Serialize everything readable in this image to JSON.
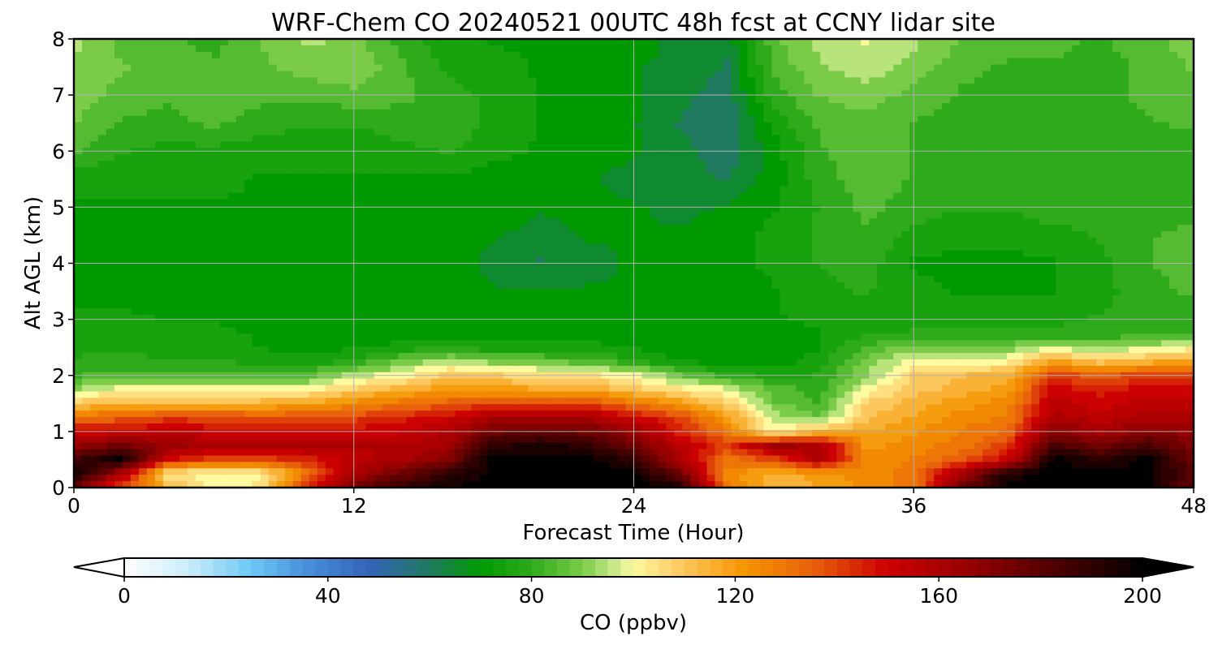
{
  "chart_data": {
    "type": "heatmap",
    "title": "WRF-Chem CO  20240521 00UTC 48h fcst at CCNY lidar site",
    "xlabel": "Forecast Time (Hour)",
    "ylabel": "Alt AGL (km)",
    "xlim": [
      0,
      48
    ],
    "ylim": [
      0,
      8
    ],
    "xticks": [
      "0",
      "12",
      "24",
      "36",
      "48"
    ],
    "yticks": [
      "0",
      "1",
      "2",
      "3",
      "4",
      "5",
      "6",
      "7",
      "8"
    ],
    "grid": true,
    "colorbar": {
      "label": "CO  (ppbv)",
      "range": [
        0,
        200
      ],
      "ticks": [
        "0",
        "40",
        "80",
        "120",
        "160",
        "200"
      ],
      "extend": "both",
      "stops": [
        {
          "v": 0,
          "c": "#ffffff"
        },
        {
          "v": 12,
          "c": "#cdeefa"
        },
        {
          "v": 25,
          "c": "#6cc8f5"
        },
        {
          "v": 35,
          "c": "#4a92db"
        },
        {
          "v": 48,
          "c": "#3464b8"
        },
        {
          "v": 60,
          "c": "#1f7a60"
        },
        {
          "v": 70,
          "c": "#009a00"
        },
        {
          "v": 80,
          "c": "#2eaa1c"
        },
        {
          "v": 90,
          "c": "#7acc48"
        },
        {
          "v": 97,
          "c": "#d2ec90"
        },
        {
          "v": 100,
          "c": "#fffaa0"
        },
        {
          "v": 107,
          "c": "#fdd472"
        },
        {
          "v": 115,
          "c": "#f9b236"
        },
        {
          "v": 122,
          "c": "#f59500"
        },
        {
          "v": 135,
          "c": "#e8620c"
        },
        {
          "v": 150,
          "c": "#cc0000"
        },
        {
          "v": 165,
          "c": "#9a0000"
        },
        {
          "v": 180,
          "c": "#5a0000"
        },
        {
          "v": 195,
          "c": "#1a0000"
        },
        {
          "v": 200,
          "c": "#000000"
        }
      ]
    },
    "times_h": [
      0,
      2,
      4,
      6,
      8,
      10,
      12,
      14,
      16,
      18,
      20,
      22,
      24,
      26,
      28,
      30,
      32,
      34,
      36,
      38,
      40,
      42,
      44,
      46,
      48
    ],
    "altitudes_km": [
      0,
      0.25,
      0.5,
      0.75,
      1.0,
      1.25,
      1.5,
      1.75,
      2.0,
      2.25,
      2.5,
      2.75,
      3.0,
      3.5,
      4.0,
      4.5,
      5.0,
      5.5,
      6.0,
      6.5,
      7.0,
      7.5,
      8.0
    ],
    "values_ppbv": [
      [
        175,
        140,
        115,
        100,
        104,
        145,
        175,
        190,
        198,
        200,
        200,
        200,
        200,
        195,
        130,
        112,
        118,
        124,
        130,
        175,
        200,
        200,
        200,
        200,
        175
      ],
      [
        200,
        160,
        102,
        100,
        100,
        130,
        160,
        175,
        190,
        200,
        200,
        200,
        200,
        175,
        125,
        115,
        120,
        125,
        130,
        160,
        195,
        200,
        200,
        200,
        180
      ],
      [
        185,
        200,
        150,
        140,
        140,
        145,
        155,
        160,
        170,
        200,
        200,
        200,
        190,
        160,
        130,
        140,
        160,
        125,
        128,
        135,
        150,
        200,
        190,
        200,
        175
      ],
      [
        165,
        175,
        165,
        160,
        160,
        160,
        158,
        158,
        162,
        190,
        195,
        190,
        175,
        155,
        140,
        165,
        160,
        120,
        125,
        130,
        140,
        185,
        175,
        185,
        170
      ],
      [
        150,
        150,
        155,
        150,
        150,
        150,
        150,
        152,
        158,
        175,
        178,
        175,
        165,
        145,
        130,
        100,
        115,
        118,
        122,
        128,
        132,
        170,
        160,
        170,
        165
      ],
      [
        130,
        135,
        140,
        140,
        138,
        138,
        140,
        145,
        150,
        160,
        160,
        160,
        150,
        140,
        120,
        95,
        88,
        112,
        118,
        125,
        128,
        160,
        155,
        160,
        160
      ],
      [
        110,
        115,
        115,
        115,
        115,
        118,
        125,
        130,
        135,
        140,
        140,
        140,
        130,
        120,
        108,
        88,
        82,
        108,
        115,
        120,
        125,
        155,
        150,
        155,
        155
      ],
      [
        92,
        100,
        100,
        100,
        100,
        100,
        108,
        115,
        120,
        120,
        118,
        118,
        110,
        104,
        98,
        85,
        80,
        100,
        110,
        115,
        120,
        150,
        145,
        150,
        150
      ],
      [
        82,
        84,
        84,
        84,
        84,
        86,
        95,
        100,
        110,
        108,
        105,
        104,
        100,
        88,
        80,
        76,
        78,
        92,
        108,
        112,
        115,
        140,
        135,
        140,
        140
      ],
      [
        78,
        80,
        78,
        78,
        76,
        74,
        78,
        88,
        95,
        90,
        88,
        85,
        78,
        72,
        70,
        70,
        75,
        90,
        100,
        100,
        100,
        120,
        110,
        115,
        120
      ],
      [
        76,
        76,
        74,
        74,
        72,
        70,
        72,
        74,
        76,
        74,
        74,
        74,
        72,
        70,
        70,
        70,
        72,
        84,
        90,
        90,
        90,
        95,
        92,
        96,
        100
      ],
      [
        78,
        76,
        74,
        74,
        72,
        70,
        70,
        70,
        70,
        70,
        70,
        70,
        70,
        70,
        70,
        70,
        72,
        76,
        78,
        78,
        78,
        78,
        78,
        80,
        82
      ],
      [
        74,
        74,
        72,
        72,
        70,
        70,
        70,
        70,
        70,
        70,
        70,
        70,
        70,
        70,
        70,
        72,
        74,
        76,
        76,
        76,
        76,
        77,
        78,
        78,
        78
      ],
      [
        70,
        70,
        70,
        70,
        70,
        70,
        70,
        70,
        70,
        68,
        68,
        68,
        68,
        68,
        70,
        72,
        76,
        78,
        74,
        72,
        72,
        72,
        76,
        80,
        84
      ],
      [
        70,
        70,
        70,
        70,
        70,
        70,
        70,
        70,
        70,
        66,
        62,
        66,
        68,
        68,
        70,
        74,
        78,
        80,
        72,
        71,
        71,
        72,
        76,
        82,
        86
      ],
      [
        70,
        70,
        70,
        70,
        70,
        70,
        70,
        70,
        70,
        68,
        66,
        68,
        68,
        68,
        70,
        74,
        78,
        82,
        76,
        74,
        74,
        76,
        78,
        82,
        84
      ],
      [
        72,
        72,
        72,
        72,
        72,
        72,
        72,
        70,
        70,
        70,
        68,
        68,
        68,
        66,
        68,
        72,
        78,
        84,
        80,
        78,
        78,
        80,
        80,
        80,
        80
      ],
      [
        74,
        74,
        74,
        74,
        72,
        72,
        72,
        72,
        72,
        70,
        70,
        68,
        66,
        64,
        62,
        70,
        80,
        86,
        82,
        80,
        80,
        82,
        82,
        80,
        78
      ],
      [
        84,
        78,
        76,
        76,
        74,
        74,
        74,
        76,
        78,
        74,
        72,
        70,
        68,
        64,
        60,
        70,
        82,
        86,
        82,
        80,
        80,
        82,
        82,
        80,
        78
      ],
      [
        88,
        82,
        80,
        84,
        80,
        78,
        78,
        80,
        82,
        76,
        72,
        70,
        68,
        62,
        58,
        74,
        84,
        86,
        82,
        80,
        80,
        82,
        80,
        82,
        84
      ],
      [
        90,
        86,
        84,
        86,
        84,
        84,
        86,
        84,
        80,
        76,
        72,
        70,
        68,
        64,
        60,
        80,
        88,
        90,
        86,
        82,
        80,
        82,
        80,
        84,
        86
      ],
      [
        92,
        88,
        86,
        84,
        86,
        90,
        92,
        84,
        76,
        74,
        72,
        70,
        68,
        66,
        62,
        84,
        92,
        96,
        90,
        84,
        82,
        82,
        80,
        84,
        88
      ],
      [
        94,
        86,
        84,
        80,
        88,
        94,
        90,
        80,
        74,
        72,
        72,
        70,
        70,
        66,
        64,
        86,
        94,
        98,
        94,
        88,
        84,
        84,
        82,
        86,
        90
      ]
    ]
  }
}
